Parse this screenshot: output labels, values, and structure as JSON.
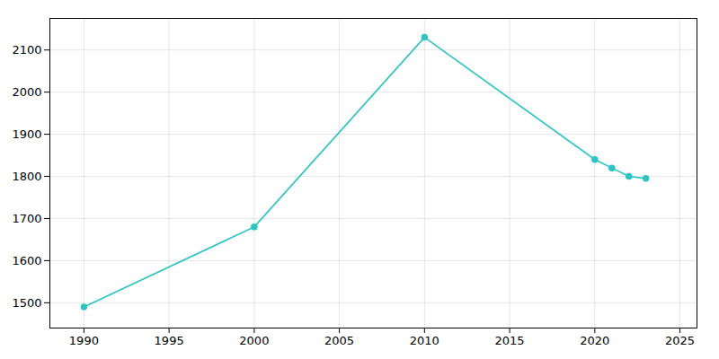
{
  "chart_data": {
    "type": "line",
    "x": [
      1990,
      2000,
      2010,
      2020,
      2021,
      2022,
      2023
    ],
    "values": [
      1490,
      1680,
      2130,
      1840,
      1820,
      1800,
      1795
    ],
    "color": "#2EC4C4",
    "marker": "circle",
    "xlim": [
      1988,
      2026
    ],
    "xticks": [
      1990,
      1995,
      2000,
      2005,
      2010,
      2015,
      2020,
      2025
    ],
    "ylim": [
      1440,
      2175
    ],
    "yticks": [
      1500,
      1600,
      1700,
      1800,
      1900,
      2000,
      2100
    ],
    "grid": true
  }
}
